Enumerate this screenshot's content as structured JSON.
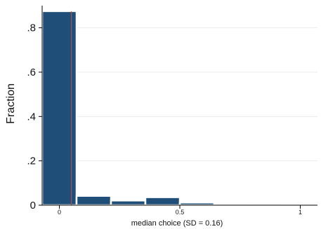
{
  "chart_data": {
    "type": "bar",
    "bar_color": "#1f4e79",
    "bar_stroke": "#ffffff",
    "reference_line_color": "#c0504d",
    "grid_color": "#ebebeb",
    "xlabel": "median choice (SD = 0.16)",
    "ylabel": "Fraction",
    "x_ticks": [
      {
        "value": 0,
        "label": "0"
      },
      {
        "value": 0.5,
        "label": "0.5"
      },
      {
        "value": 1,
        "label": "1"
      }
    ],
    "y_ticks": [
      {
        "value": 0,
        "label": "0"
      },
      {
        "value": 0.2,
        "label": ".2"
      },
      {
        "value": 0.4,
        "label": ".4"
      },
      {
        "value": 0.6,
        "label": ".6"
      },
      {
        "value": 0.8,
        "label": ".8"
      }
    ],
    "xlim": [
      -0.0714,
      1.0714
    ],
    "ylim": [
      0,
      0.9
    ],
    "bins": [
      {
        "x0": -0.0714,
        "x1": 0.0714,
        "value": 0.875
      },
      {
        "x0": 0.0714,
        "x1": 0.2143,
        "value": 0.042
      },
      {
        "x0": 0.2143,
        "x1": 0.3571,
        "value": 0.021
      },
      {
        "x0": 0.3571,
        "x1": 0.5,
        "value": 0.036
      },
      {
        "x0": 0.5,
        "x1": 0.6429,
        "value": 0.012
      },
      {
        "x0": 0.6429,
        "x1": 0.7857,
        "value": 0.008
      },
      {
        "x0": 0.7857,
        "x1": 0.9286,
        "value": 0.008
      }
    ],
    "reference_line": {
      "x": 0.05
    },
    "grid": true
  }
}
